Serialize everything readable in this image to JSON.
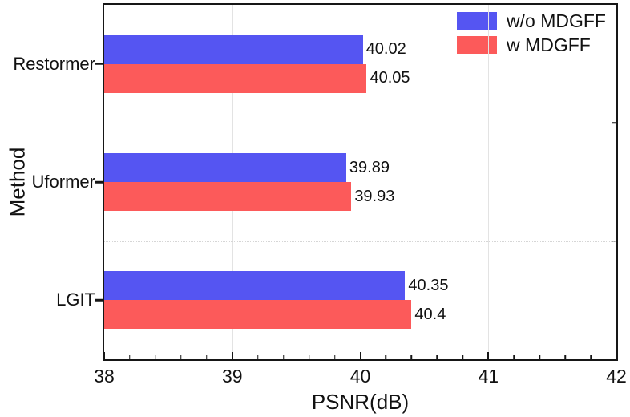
{
  "figure": {
    "background": "#ffffff",
    "axis_color": "#161616",
    "grid_color_solid": "#e3e3e3",
    "grid_color_dotted": "#d6d6d6"
  },
  "chart_data": {
    "type": "bar",
    "orientation": "horizontal",
    "title": "",
    "xlabel": "PSNR(dB)",
    "ylabel": "Method",
    "xlim": [
      38,
      42
    ],
    "x_major_ticks": [
      38,
      39,
      40,
      41,
      42
    ],
    "x_minor_tick_step": 0.2,
    "categories": [
      "Restormer",
      "Uformer",
      "LGIT"
    ],
    "series": [
      {
        "name": "w/o MDGFF",
        "color": "#5555F2",
        "values": [
          40.02,
          39.89,
          40.35
        ],
        "labels": [
          "40.02",
          "39.89",
          "40.35"
        ]
      },
      {
        "name": "w MDGFF",
        "color": "#FC5A5A",
        "values": [
          40.05,
          39.93,
          40.4
        ],
        "labels": [
          "40.05",
          "39.93",
          "40.4"
        ]
      }
    ],
    "grid": {
      "vertical_solid_at": [
        39,
        40,
        41
      ],
      "horizontal_dotted_between_categories": true
    },
    "legend_position": "top-right"
  }
}
